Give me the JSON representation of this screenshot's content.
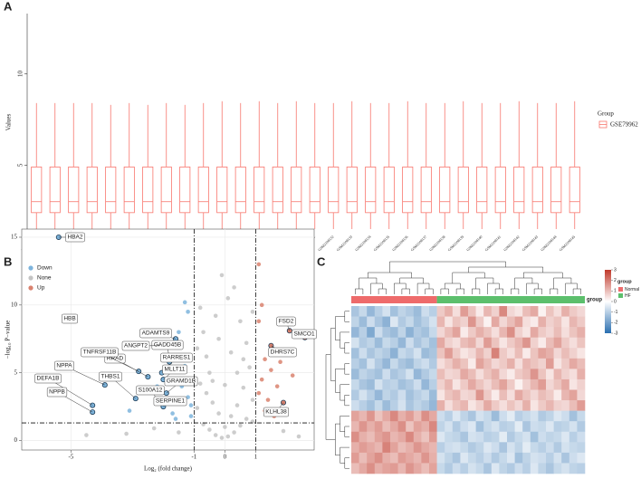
{
  "chart_data": [
    {
      "type": "box",
      "panel": "A",
      "ylabel": "Values",
      "legend_title": "Group",
      "categories": [
        "GSM2108116",
        "GSM2108117",
        "GSM2108118",
        "GSM2108119",
        "GSM2108120",
        "GSM2108121",
        "GSM2108122",
        "GSM2108123",
        "GSM2108124",
        "GSM2108125",
        "GSM2108126",
        "GSM2108127",
        "GSM2108128",
        "GSM2108129",
        "GSM2108130",
        "GSM2108131",
        "GSM2108132",
        "GSM2108133",
        "GSM2108134",
        "GSM2108135",
        "GSM2108136",
        "GSM2108137",
        "GSM2108138",
        "GSM2108139",
        "GSM2108140",
        "GSM2108141",
        "GSM2108142",
        "GSM2108143",
        "GSM2108144",
        "GSM2108145"
      ],
      "series": [
        {
          "name": "GSE79962",
          "color": "#f8766d",
          "low": [
            1.5,
            1.5,
            1.5,
            1.5,
            1.5,
            1.5,
            1.5,
            1.5,
            1.5,
            1.5,
            1.5,
            1.5,
            1.5,
            1.5,
            1.5,
            1.5,
            1.5,
            1.5,
            1.5,
            1.5,
            1.5,
            1.5,
            1.5,
            1.5,
            1.5,
            1.5,
            1.5,
            1.5,
            1.5,
            1.5
          ],
          "q1": [
            2.4,
            2.4,
            2.4,
            2.4,
            2.4,
            2.4,
            2.4,
            2.4,
            2.4,
            2.4,
            2.4,
            2.4,
            2.4,
            2.4,
            2.4,
            2.4,
            2.4,
            2.4,
            2.4,
            2.4,
            2.4,
            2.4,
            2.4,
            2.4,
            2.4,
            2.4,
            2.4,
            2.4,
            2.4,
            2.4
          ],
          "median": [
            3.0,
            3.0,
            3.0,
            3.0,
            3.0,
            3.0,
            3.0,
            3.0,
            3.0,
            3.0,
            3.0,
            3.0,
            3.0,
            3.0,
            3.0,
            3.0,
            3.0,
            3.0,
            3.0,
            3.0,
            3.0,
            3.0,
            3.0,
            3.0,
            3.0,
            3.0,
            3.0,
            3.0,
            3.0,
            3.0
          ],
          "q3": [
            4.9,
            4.9,
            4.9,
            4.9,
            4.9,
            4.9,
            4.9,
            4.9,
            4.9,
            4.9,
            4.9,
            4.9,
            4.9,
            4.9,
            4.9,
            4.9,
            4.9,
            4.9,
            4.9,
            4.9,
            4.9,
            4.9,
            4.9,
            4.9,
            4.9,
            4.9,
            4.9,
            4.9,
            4.9,
            4.9
          ],
          "high": [
            8.4,
            8.4,
            8.4,
            8.4,
            8.3,
            8.4,
            8.3,
            8.4,
            8.3,
            8.4,
            8.5,
            8.4,
            8.5,
            8.4,
            8.5,
            8.4,
            8.4,
            8.5,
            8.4,
            8.4,
            8.5,
            8.4,
            8.4,
            8.5,
            8.4,
            8.4,
            8.5,
            8.4,
            8.4,
            8.5
          ]
        }
      ],
      "ylim": [
        1.4,
        13.3
      ],
      "yticks": [
        5,
        10
      ]
    },
    {
      "type": "scatter",
      "panel": "B",
      "xlabel": "Log₂ (fold change)",
      "ylabel": "−log₁₀ P−value",
      "xlim": [
        -6.6,
        2.9
      ],
      "ylim": [
        -0.7,
        15.6
      ],
      "xticks": [
        -5,
        -1,
        0,
        1
      ],
      "yticks": [
        0,
        5,
        10,
        15
      ],
      "grid": true,
      "vlines": [
        -1,
        1
      ],
      "hline": 1.3,
      "series": [
        {
          "name": "Down",
          "color": "#7db4dc",
          "x": [
            -5.4,
            -5.2,
            -1.6,
            -1.8,
            -2.1,
            -2.05,
            -2.5,
            -2.8,
            -2.0,
            -3.9,
            -2.9,
            -4.3,
            -1.9,
            -2.1,
            -4.3,
            -2.0,
            -1.3,
            -1.2,
            -1.5,
            -1.4,
            -1.2,
            -1.7,
            -1.1,
            -1.3,
            -2.4,
            -1.6,
            -1.1,
            -3.1,
            -1.5,
            -2.2
          ],
          "y": [
            15,
            8.9,
            7.5,
            5.8,
            7.0,
            5.0,
            4.7,
            5.1,
            4.5,
            4.1,
            3.1,
            2.6,
            3.5,
            2.8,
            2.1,
            2.5,
            10.2,
            9.5,
            6.3,
            4.0,
            3.2,
            2.0,
            1.8,
            5.5,
            3.8,
            1.6,
            2.6,
            2.2,
            8.0,
            4.0
          ],
          "labels": [
            "HBA2",
            "HBB",
            "ADAMTS9",
            "GADD45B",
            "ANGPT2",
            "RARRES1",
            "RRAD",
            "TNFRSF11B",
            "MLLT11",
            "NPPA",
            "THBS1",
            "DEFA1B",
            "GRAMD1B",
            "S100A12",
            "NPPB",
            "SERPINE1",
            null,
            null,
            null,
            null,
            null,
            null,
            null,
            null,
            null,
            null,
            null,
            null,
            null,
            null
          ]
        },
        {
          "name": "None",
          "color": "#c4c4c4",
          "x": [
            -0.9,
            -0.7,
            -0.5,
            -0.3,
            -0.1,
            0.1,
            0.3,
            0.5,
            0.7,
            0.9,
            -0.8,
            -0.6,
            -0.4,
            -0.2,
            0.0,
            0.2,
            0.4,
            0.6,
            0.8,
            0.9,
            -0.9,
            -0.7,
            -0.5,
            -0.3,
            -0.1,
            0.1,
            0.3,
            0.5,
            0.7,
            0.9,
            -0.6,
            -0.2,
            0.2,
            0.4,
            -0.4,
            0.0,
            -0.8,
            0.6,
            -2.3,
            -3.2,
            1.9,
            -1.5,
            2.4,
            -4.5
          ],
          "y": [
            6.8,
            8.0,
            5.0,
            9.2,
            12.2,
            10.5,
            11.3,
            8.8,
            7.2,
            9.5,
            4.2,
            3.5,
            2.8,
            2.0,
            1.0,
            1.8,
            2.6,
            3.9,
            5.4,
            3.0,
            2.4,
            1.2,
            0.8,
            0.4,
            0.2,
            0.3,
            0.6,
            1.1,
            1.6,
            1.4,
            6.2,
            7.5,
            6.5,
            5.0,
            4.4,
            4.1,
            9.8,
            6.0,
            0.9,
            0.5,
            0.7,
            0.6,
            0.3,
            0.4
          ]
        },
        {
          "name": "Up",
          "color": "#d9826f",
          "x": [
            2.1,
            2.6,
            1.5,
            1.9,
            1.1,
            1.2,
            1.3,
            1.5,
            1.2,
            1.7,
            1.1,
            1.4,
            1.8,
            1.3,
            1.6,
            2.2,
            1.1
          ],
          "y": [
            8.1,
            7.6,
            7.0,
            2.8,
            13.0,
            10.0,
            6.0,
            5.2,
            4.5,
            4.0,
            3.5,
            3.0,
            5.8,
            2.2,
            1.8,
            4.8,
            8.8
          ],
          "labels": [
            "FSD2",
            "SMCO1",
            "DHRS7C",
            "KLHL38",
            null,
            null,
            null,
            null,
            null,
            null,
            null,
            null,
            null,
            null,
            null,
            null,
            null
          ]
        }
      ]
    },
    {
      "type": "heatmap",
      "panel": "C",
      "zlim": [
        -3,
        3
      ],
      "zticks": [
        -3,
        -2,
        -1,
        0,
        1,
        2,
        3
      ],
      "colors": [
        "#2a6fb0",
        "#ffffff",
        "#c0392b"
      ],
      "annotation": {
        "title": "group",
        "groups": [
          {
            "name": "Normal",
            "color": "#ee6b6b",
            "columns": 11
          },
          {
            "name": "HF",
            "color": "#5cbf6c",
            "columns": 19
          }
        ]
      },
      "values": [
        [
          -1.2,
          -0.8,
          -1.5,
          -1.0,
          -0.6,
          -1.3,
          -0.9,
          -1.1,
          -1.4,
          -0.7,
          -1.0,
          0.8,
          1.2,
          0.5,
          1.5,
          0.9,
          0.3,
          1.1,
          0.7,
          1.8,
          0.6,
          0.4,
          1.0,
          1.3,
          0.2,
          0.9,
          0.5,
          1.2,
          0.8,
          0.6
        ],
        [
          -0.9,
          -1.4,
          -0.7,
          -1.2,
          -1.6,
          -0.5,
          -1.1,
          -0.8,
          -1.3,
          -1.0,
          -0.6,
          1.1,
          0.4,
          0.9,
          0.7,
          1.6,
          0.8,
          0.2,
          1.3,
          0.6,
          1.0,
          1.4,
          0.5,
          0.3,
          1.2,
          0.7,
          0.9,
          0.4,
          1.1,
          0.8
        ],
        [
          -1.5,
          -1.0,
          -1.8,
          -0.7,
          -1.2,
          -1.4,
          -0.9,
          -1.6,
          -1.1,
          -1.3,
          -0.8,
          0.6,
          1.0,
          1.4,
          0.3,
          0.8,
          1.2,
          0.9,
          0.5,
          1.1,
          1.7,
          0.7,
          0.4,
          1.3,
          0.8,
          0.6,
          1.0,
          0.5,
          0.9,
          1.2
        ],
        [
          -0.6,
          -1.1,
          -0.9,
          -1.4,
          -0.8,
          -1.0,
          -1.5,
          -0.7,
          -1.2,
          -0.9,
          -1.3,
          1.3,
          0.7,
          0.5,
          1.0,
          1.2,
          0.6,
          1.5,
          0.9,
          0.4,
          0.8,
          1.1,
          1.6,
          0.7,
          0.3,
          1.0,
          1.4,
          0.8,
          0.5,
          0.9
        ],
        [
          -1.3,
          -0.7,
          -1.2,
          -0.9,
          -1.1,
          -1.6,
          -0.8,
          -1.0,
          -0.6,
          -1.4,
          -1.2,
          0.9,
          1.5,
          0.8,
          0.4,
          0.6,
          1.1,
          0.7,
          1.9,
          0.8,
          0.5,
          1.0,
          0.3,
          0.9,
          1.4,
          1.2,
          0.6,
          1.0,
          0.7,
          0.4
        ],
        [
          -1.0,
          -1.3,
          -0.6,
          -1.1,
          -1.5,
          -0.8,
          -1.2,
          -1.4,
          -0.9,
          -0.7,
          -1.1,
          0.5,
          0.8,
          1.2,
          0.9,
          0.3,
          1.4,
          1.0,
          0.6,
          0.8,
          1.2,
          0.5,
          1.1,
          0.9,
          0.7,
          1.5,
          0.4,
          0.8,
          1.3,
          1.0
        ],
        [
          -1.4,
          -0.9,
          -1.1,
          -1.3,
          -0.7,
          -1.2,
          -1.0,
          -0.6,
          -1.5,
          -1.1,
          -0.8,
          1.0,
          0.6,
          0.7,
          1.3,
          1.0,
          0.5,
          0.9,
          1.2,
          0.6,
          0.3,
          0.8,
          1.0,
          1.6,
          0.9,
          0.4,
          1.1,
          0.7,
          0.5,
          1.2
        ],
        [
          -0.8,
          -1.2,
          -1.4,
          -0.6,
          -1.0,
          -0.9,
          -1.3,
          -1.1,
          -0.7,
          -1.5,
          -1.0,
          0.7,
          1.1,
          0.4,
          0.8,
          1.3,
          0.9,
          0.6,
          1.0,
          1.4,
          0.8,
          0.2,
          0.7,
          1.1,
          1.5,
          0.6,
          0.9,
          1.3,
          0.4,
          0.7
        ],
        [
          -1.1,
          -0.6,
          -1.0,
          -1.5,
          -0.9,
          -1.1,
          -0.7,
          -1.3,
          -1.0,
          -0.8,
          -1.4,
          0.4,
          0.9,
          1.1,
          0.6,
          0.7,
          1.6,
          0.8,
          0.3,
          1.0,
          0.5,
          1.3,
          0.9,
          0.6,
          1.0,
          0.8,
          0.3,
          1.1,
          1.4,
          0.6
        ],
        [
          -0.7,
          -1.0,
          -1.3,
          -0.8,
          -1.4,
          -1.0,
          -0.6,
          -1.2,
          -0.9,
          -1.1,
          -1.5,
          1.2,
          0.5,
          0.9,
          1.1,
          0.4,
          0.7,
          1.3,
          0.8,
          0.5,
          0.9,
          0.6,
          1.2,
          0.4,
          0.8,
          1.1,
          0.7,
          0.6,
          1.0,
          1.5
        ],
        [
          1.4,
          1.1,
          1.6,
          0.9,
          1.3,
          1.8,
          1.2,
          1.5,
          1.0,
          1.7,
          1.3,
          -0.7,
          -1.0,
          -0.5,
          -0.9,
          -1.2,
          -0.6,
          -0.8,
          -1.4,
          -0.7,
          -0.4,
          -1.0,
          -0.8,
          -0.6,
          -1.1,
          -0.9,
          -0.5,
          -0.7,
          -1.3,
          -0.8
        ],
        [
          1.1,
          1.6,
          1.2,
          1.5,
          1.0,
          1.3,
          1.7,
          0.9,
          1.4,
          1.2,
          1.8,
          -0.9,
          -0.6,
          -1.1,
          -0.7,
          -0.5,
          -1.3,
          -0.8,
          -0.6,
          -1.0,
          -0.9,
          -0.4,
          -1.2,
          -0.7,
          -0.8,
          -0.5,
          -1.0,
          -0.9,
          -0.6,
          -1.1
        ],
        [
          1.7,
          1.2,
          1.0,
          1.4,
          1.6,
          1.1,
          1.3,
          1.8,
          1.2,
          0.9,
          1.5,
          -0.5,
          -0.8,
          -0.9,
          -1.2,
          -0.6,
          -0.7,
          -1.0,
          -0.9,
          -0.4,
          -1.1,
          -0.8,
          -0.6,
          -1.3,
          -0.7,
          -0.9,
          -0.8,
          -0.5,
          -1.0,
          -0.7
        ],
        [
          1.2,
          1.5,
          1.3,
          1.1,
          1.9,
          1.4,
          1.0,
          1.2,
          1.6,
          1.3,
          1.1,
          -1.0,
          -0.7,
          -0.6,
          -0.8,
          -1.1,
          -0.9,
          -0.5,
          -0.7,
          -1.2,
          -0.6,
          -0.9,
          -0.4,
          -0.8,
          -1.0,
          -0.7,
          -1.1,
          -0.6,
          -0.8,
          -0.9
        ],
        [
          1.5,
          1.0,
          1.4,
          1.7,
          1.2,
          1.0,
          1.5,
          1.3,
          1.1,
          1.6,
          1.2,
          -0.6,
          -0.9,
          -1.2,
          -0.5,
          -0.8,
          -1.0,
          -0.7,
          -1.1,
          -0.8,
          -0.5,
          -1.3,
          -0.9,
          -0.6,
          -0.7,
          -1.0,
          -0.6,
          -1.2,
          -0.7,
          -0.5
        ],
        [
          1.0,
          1.3,
          1.7,
          1.2,
          1.4,
          1.5,
          1.1,
          1.6,
          1.3,
          1.0,
          1.4,
          -0.8,
          -1.1,
          -0.7,
          -1.0,
          -0.6,
          -0.8,
          -1.2,
          -0.5,
          -0.9,
          -1.1,
          -0.7,
          -1.0,
          -0.5,
          -0.9,
          -1.2,
          -0.8,
          -0.6,
          -0.9,
          -1.0
        ]
      ]
    }
  ]
}
